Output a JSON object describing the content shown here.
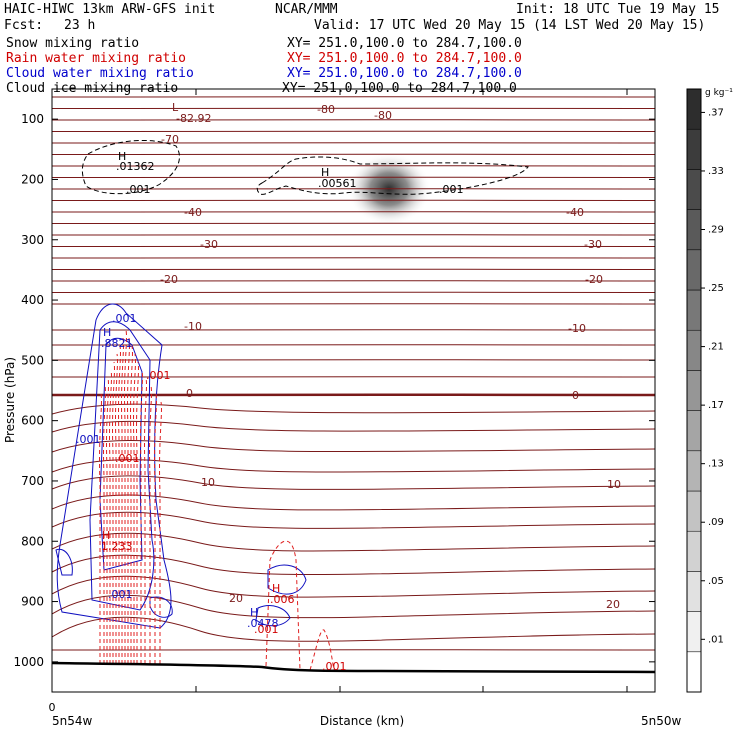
{
  "header": {
    "org": "HAIC-HIWC 13km ARW-GFS init",
    "center": "NCAR/MMM",
    "init": "Init: 18 UTC Tue 19 May 15",
    "fcst_label": "Fcst:",
    "fcst_value": "23 h",
    "valid": "Valid: 17 UTC Wed 20 May 15 (14 LST Wed 20 May 15)"
  },
  "fields": [
    {
      "label": "Snow mixing ratio",
      "xy": "XY= 251.0,100.0 to 284.7,100.0",
      "color": "#000000"
    },
    {
      "label": "Rain water mixing ratio",
      "xy": "XY= 251.0,100.0 to 284.7,100.0",
      "color": "#d00000"
    },
    {
      "label": "Cloud water mixing ratio",
      "xy": "XY= 251.0,100.0 to 284.7,100.0",
      "color": "#0000cc"
    },
    {
      "label": "Cloud ice mixing ratio",
      "xy": "XY= 251.0,100.0 to 284.7,100.0",
      "color": "#000000"
    }
  ],
  "colors": {
    "temp": "#7a1a1a",
    "rain": "#e02020",
    "cloud": "#1010c0",
    "ice": "#000000",
    "ground": "#000000"
  },
  "chart_data": {
    "type": "cross-section",
    "ylabel": "Pressure (hPa)",
    "xlabel": "Distance (km)",
    "x_start_label": "5n54w",
    "x_end_label": "5n50w",
    "x_zero_label": "0",
    "ylim": [
      1050,
      50
    ],
    "yticks": [
      100,
      200,
      300,
      400,
      500,
      600,
      700,
      800,
      900,
      1000
    ],
    "colorbar": {
      "unit": "g kg⁻¹",
      "ticks": [
        ".01",
        ".05",
        ".09",
        ".13",
        ".17",
        ".21",
        ".25",
        ".29",
        ".33",
        ".37"
      ]
    },
    "temperature_labels_c": [
      "-80",
      "-80",
      "-70",
      "-40",
      "-40",
      "-30",
      "-30",
      "-20",
      "-20",
      "-10",
      "-10",
      "0",
      "0",
      "10",
      "10",
      "20",
      "20"
    ],
    "extrema": [
      {
        "type": "L",
        "value": "-82.92"
      },
      {
        "type": "H",
        "value": ".01362"
      },
      {
        "type": "H",
        "value": ".00561"
      },
      {
        "type": "H",
        "value": ".8821"
      },
      {
        "type": "H",
        "value": "1.233"
      },
      {
        "type": "H",
        "value": ".006"
      },
      {
        "type": "H",
        "value": ".0478"
      }
    ],
    "contour_labels": [
      ".001",
      ".001",
      ".001",
      ".001",
      ".001",
      ".001",
      ".001",
      ".001",
      ".001"
    ]
  }
}
